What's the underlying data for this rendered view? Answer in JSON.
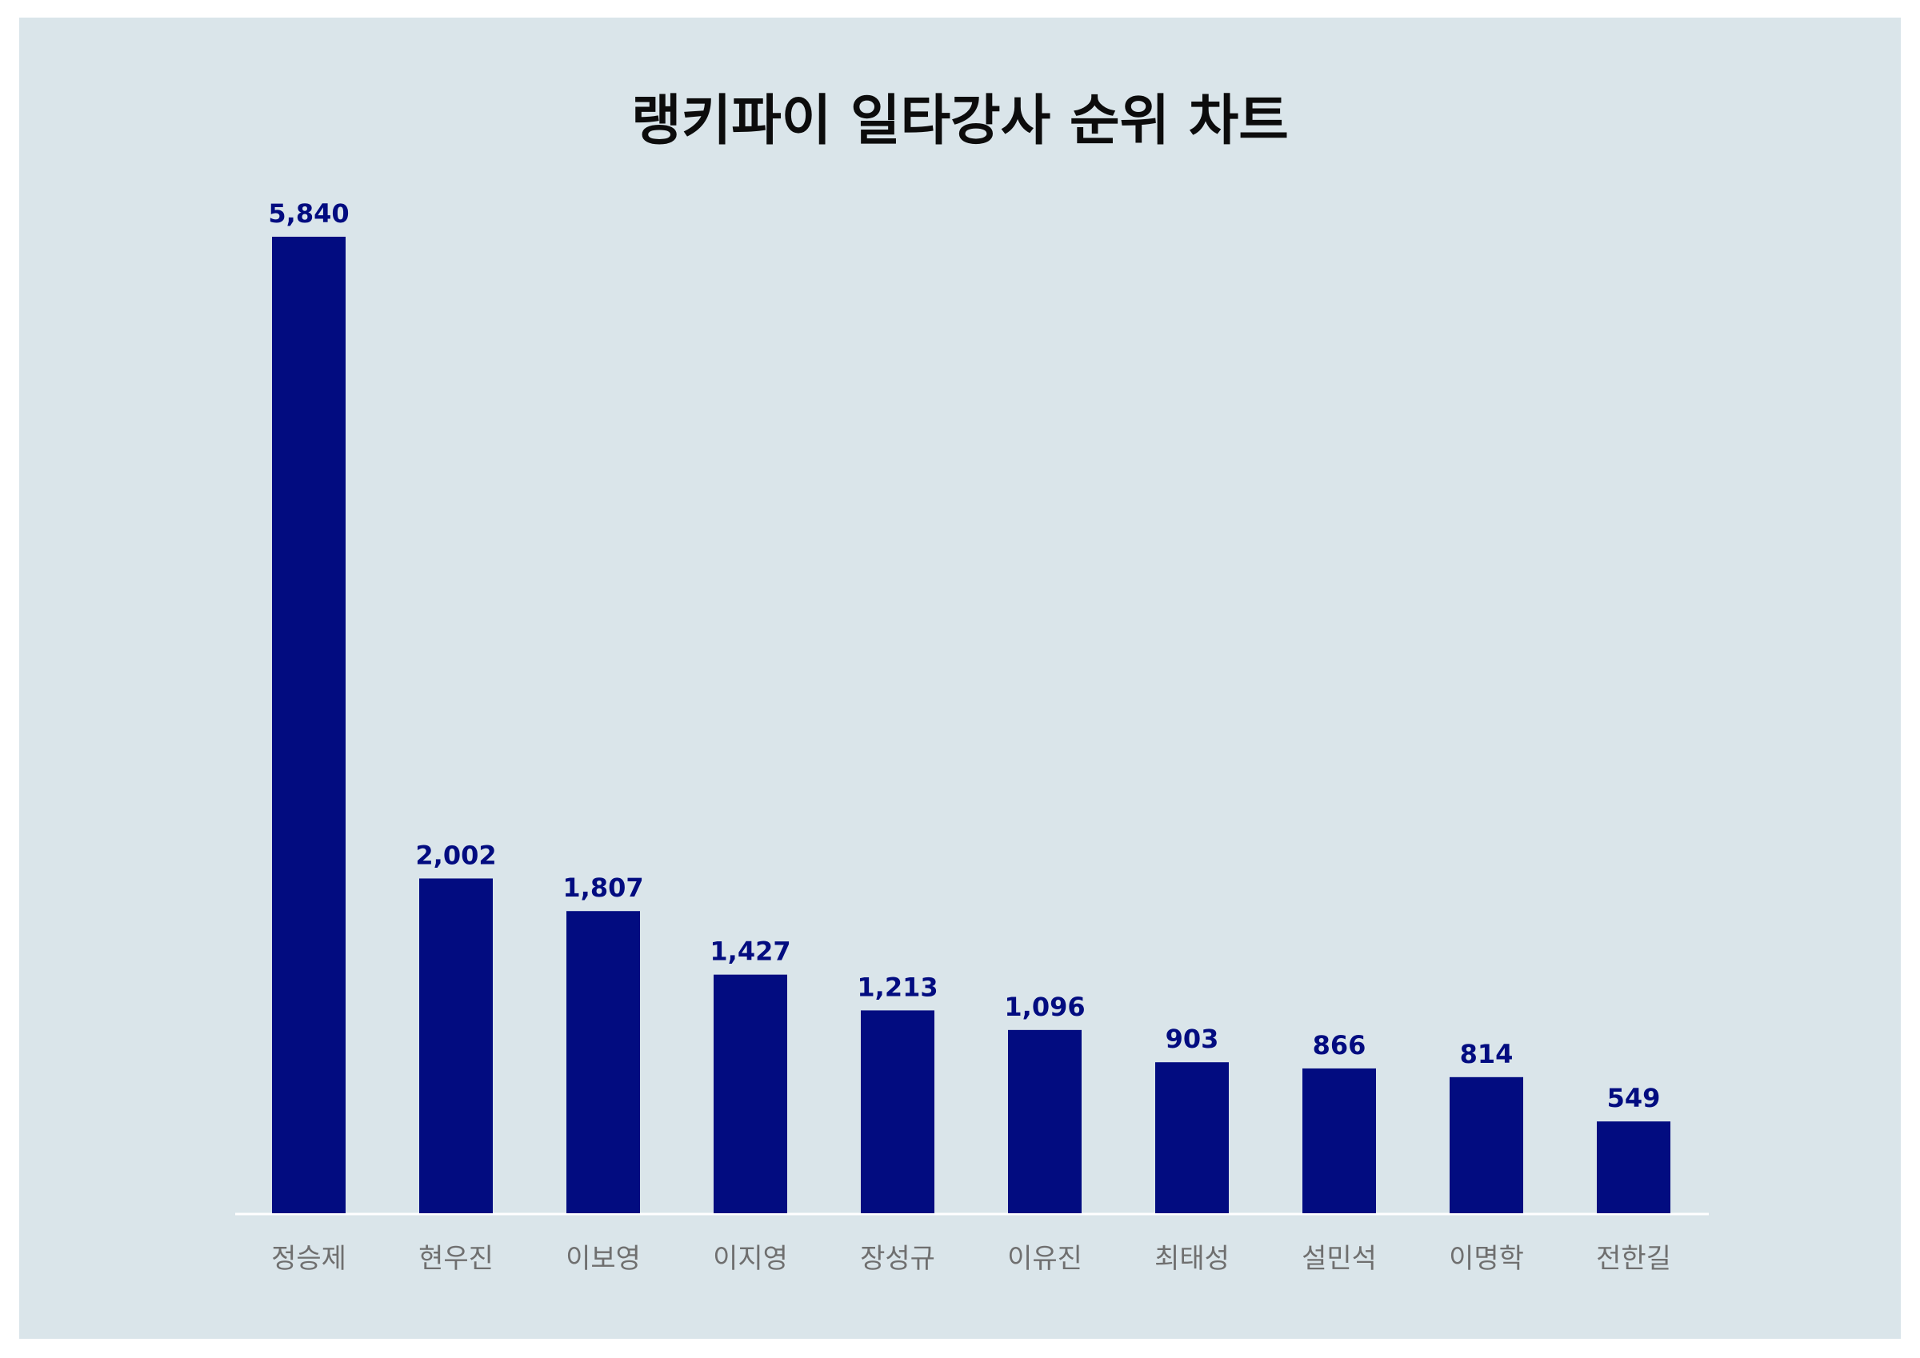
{
  "chart_data": {
    "type": "bar",
    "title": "랭키파이 일타강사 순위 차트",
    "categories": [
      "정승제",
      "현우진",
      "이보영",
      "이지영",
      "장성규",
      "이유진",
      "최태성",
      "설민석",
      "이명학",
      "전한길"
    ],
    "values": [
      5840,
      2002,
      1807,
      1427,
      1213,
      1096,
      903,
      866,
      814,
      549
    ],
    "value_labels": [
      "5,840",
      "2,002",
      "1,807",
      "1,427",
      "1,213",
      "1,096",
      "903",
      "866",
      "814",
      "549"
    ],
    "xlabel": "",
    "ylabel": "",
    "ylim": [
      0,
      5840
    ],
    "grid": false,
    "legend": "none",
    "colors": {
      "bar": "#020c80",
      "value_label": "#020c80",
      "category_label": "#6f6f6f",
      "background": "#dae5ea",
      "baseline": "#ffffff"
    }
  }
}
